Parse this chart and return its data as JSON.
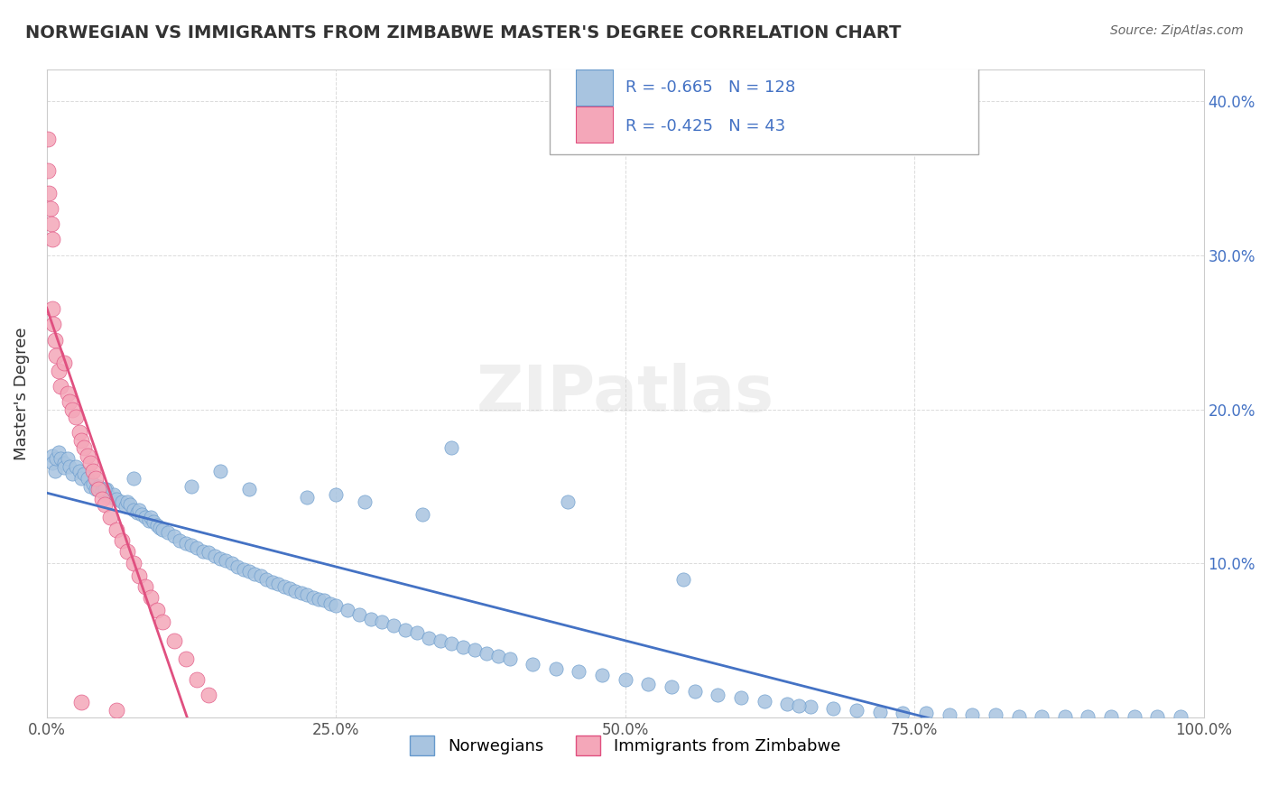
{
  "title": "NORWEGIAN VS IMMIGRANTS FROM ZIMBABWE MASTER'S DEGREE CORRELATION CHART",
  "source": "Source: ZipAtlas.com",
  "ylabel": "Master's Degree",
  "xlabel": "",
  "series": [
    {
      "name": "Norwegians",
      "color": "#a8c4e0",
      "edge_color": "#6699cc",
      "R": -0.665,
      "N": 128,
      "legend_color": "#a8c4e0",
      "line_color": "#4472c4"
    },
    {
      "name": "Immigrants from Zimbabwe",
      "color": "#f4a7b9",
      "edge_color": "#e05080",
      "R": -0.425,
      "N": 43,
      "legend_color": "#f4a7b9",
      "line_color": "#e05080"
    }
  ],
  "xlim": [
    0,
    1
  ],
  "ylim": [
    0,
    0.42
  ],
  "yticks": [
    0.0,
    0.1,
    0.2,
    0.3,
    0.4
  ],
  "ytick_labels": [
    "",
    "10.0%",
    "20.0%",
    "30.0%",
    "40.0%"
  ],
  "xticks": [
    0.0,
    0.25,
    0.5,
    0.75,
    1.0
  ],
  "xtick_labels": [
    "0.0%",
    "25.0%",
    "50.0%",
    "75.0%",
    "100.0%"
  ],
  "watermark": "ZIPatlas",
  "background_color": "#ffffff",
  "grid_color": "#cccccc",
  "title_color": "#333333",
  "source_color": "#666666",
  "norwegian_x": [
    0.005,
    0.005,
    0.007,
    0.008,
    0.01,
    0.012,
    0.015,
    0.015,
    0.018,
    0.02,
    0.022,
    0.025,
    0.028,
    0.03,
    0.032,
    0.035,
    0.038,
    0.04,
    0.042,
    0.045,
    0.048,
    0.05,
    0.052,
    0.055,
    0.058,
    0.06,
    0.065,
    0.068,
    0.07,
    0.072,
    0.075,
    0.078,
    0.08,
    0.082,
    0.085,
    0.088,
    0.09,
    0.092,
    0.095,
    0.098,
    0.1,
    0.105,
    0.11,
    0.115,
    0.12,
    0.125,
    0.13,
    0.135,
    0.14,
    0.145,
    0.15,
    0.155,
    0.16,
    0.165,
    0.17,
    0.175,
    0.18,
    0.185,
    0.19,
    0.195,
    0.2,
    0.205,
    0.21,
    0.215,
    0.22,
    0.225,
    0.23,
    0.235,
    0.24,
    0.245,
    0.25,
    0.26,
    0.27,
    0.28,
    0.29,
    0.3,
    0.31,
    0.32,
    0.33,
    0.34,
    0.35,
    0.36,
    0.37,
    0.38,
    0.39,
    0.4,
    0.42,
    0.44,
    0.46,
    0.48,
    0.5,
    0.52,
    0.54,
    0.56,
    0.58,
    0.6,
    0.62,
    0.64,
    0.66,
    0.68,
    0.7,
    0.72,
    0.74,
    0.76,
    0.78,
    0.8,
    0.82,
    0.84,
    0.86,
    0.88,
    0.9,
    0.92,
    0.94,
    0.96,
    0.98,
    0.65,
    0.55,
    0.45,
    0.35,
    0.25,
    0.15,
    0.05,
    0.075,
    0.125,
    0.175,
    0.225,
    0.275,
    0.325
  ],
  "norwegian_y": [
    0.17,
    0.165,
    0.16,
    0.168,
    0.172,
    0.168,
    0.165,
    0.162,
    0.168,
    0.163,
    0.158,
    0.163,
    0.16,
    0.155,
    0.158,
    0.155,
    0.15,
    0.152,
    0.148,
    0.15,
    0.147,
    0.145,
    0.148,
    0.143,
    0.145,
    0.142,
    0.14,
    0.137,
    0.14,
    0.138,
    0.135,
    0.133,
    0.135,
    0.132,
    0.13,
    0.128,
    0.13,
    0.127,
    0.125,
    0.123,
    0.122,
    0.12,
    0.118,
    0.115,
    0.113,
    0.112,
    0.11,
    0.108,
    0.107,
    0.105,
    0.103,
    0.102,
    0.1,
    0.098,
    0.096,
    0.095,
    0.093,
    0.092,
    0.09,
    0.088,
    0.087,
    0.085,
    0.084,
    0.082,
    0.081,
    0.08,
    0.078,
    0.077,
    0.076,
    0.074,
    0.073,
    0.07,
    0.067,
    0.064,
    0.062,
    0.06,
    0.057,
    0.055,
    0.052,
    0.05,
    0.048,
    0.046,
    0.044,
    0.042,
    0.04,
    0.038,
    0.035,
    0.032,
    0.03,
    0.028,
    0.025,
    0.022,
    0.02,
    0.017,
    0.015,
    0.013,
    0.011,
    0.009,
    0.007,
    0.006,
    0.005,
    0.004,
    0.003,
    0.003,
    0.002,
    0.002,
    0.002,
    0.001,
    0.001,
    0.001,
    0.001,
    0.001,
    0.001,
    0.001,
    0.001,
    0.008,
    0.09,
    0.14,
    0.175,
    0.145,
    0.16,
    0.148,
    0.155,
    0.15,
    0.148,
    0.143,
    0.14,
    0.132
  ],
  "zimbabwe_x": [
    0.001,
    0.001,
    0.002,
    0.003,
    0.004,
    0.005,
    0.005,
    0.006,
    0.007,
    0.008,
    0.01,
    0.012,
    0.015,
    0.018,
    0.02,
    0.022,
    0.025,
    0.028,
    0.03,
    0.032,
    0.035,
    0.038,
    0.04,
    0.042,
    0.045,
    0.048,
    0.05,
    0.055,
    0.06,
    0.065,
    0.07,
    0.075,
    0.08,
    0.085,
    0.09,
    0.095,
    0.1,
    0.11,
    0.12,
    0.13,
    0.14,
    0.03,
    0.06
  ],
  "zimbabwe_y": [
    0.375,
    0.355,
    0.34,
    0.33,
    0.32,
    0.31,
    0.265,
    0.255,
    0.245,
    0.235,
    0.225,
    0.215,
    0.23,
    0.21,
    0.205,
    0.2,
    0.195,
    0.185,
    0.18,
    0.175,
    0.17,
    0.165,
    0.16,
    0.155,
    0.148,
    0.142,
    0.138,
    0.13,
    0.122,
    0.115,
    0.108,
    0.1,
    0.092,
    0.085,
    0.078,
    0.07,
    0.062,
    0.05,
    0.038,
    0.025,
    0.015,
    0.01,
    0.005
  ]
}
